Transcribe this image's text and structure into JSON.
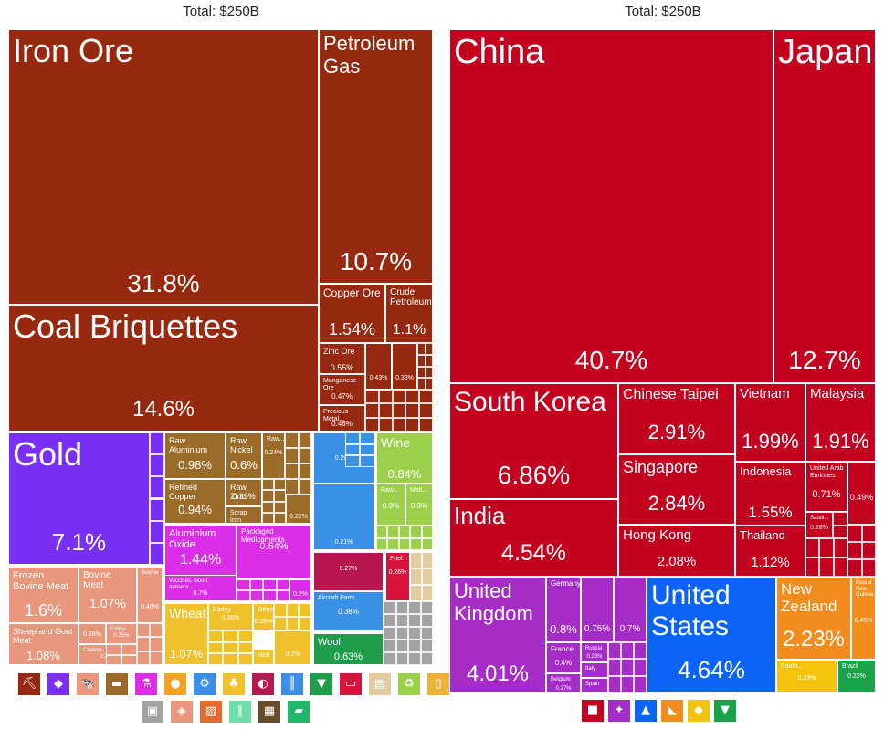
{
  "chart_data": [
    {
      "type": "treemap",
      "title": "Exports by product",
      "total_label": "Total: $250B",
      "tiles": [
        {
          "name": "Iron Ore",
          "share": "31.8%",
          "color": "#96290f"
        },
        {
          "name": "Coal Briquettes",
          "share": "14.6%",
          "color": "#96290f"
        },
        {
          "name": "Petroleum Gas",
          "share": "10.7%",
          "color": "#96290f"
        },
        {
          "name": "Copper Ore",
          "share": "1.54%",
          "color": "#96290f"
        },
        {
          "name": "Crude Petroleum",
          "share": "1.1%",
          "color": "#96290f"
        },
        {
          "name": "Zinc Ore",
          "share": "0.55%",
          "color": "#96290f"
        },
        {
          "name": "Manganese Ore",
          "share": "0.47%",
          "color": "#96290f"
        },
        {
          "name": "Precious Metal...",
          "share": "0.46%",
          "color": "#96290f"
        },
        {
          "name": "",
          "share": "0.43%",
          "color": "#96290f"
        },
        {
          "name": "",
          "share": "0.38%",
          "color": "#96290f"
        },
        {
          "name": "Gold",
          "share": "7.1%",
          "color": "#7a2ff7"
        },
        {
          "name": "Raw Aluminium",
          "share": "0.98%",
          "color": "#9b6b29"
        },
        {
          "name": "Raw Nickel",
          "share": "0.6%",
          "color": "#9b6b29"
        },
        {
          "name": "Raw...",
          "share": "0.24%",
          "color": "#9b6b29"
        },
        {
          "name": "Refined Copper",
          "share": "0.94%",
          "color": "#9b6b29"
        },
        {
          "name": "Raw Zinc",
          "share": "0.39%",
          "color": "#9b6b29"
        },
        {
          "name": "Scrap Iron",
          "share": "",
          "color": "#9b6b29"
        },
        {
          "name": "",
          "share": "0.22%",
          "color": "#9b6b29"
        },
        {
          "name": "Aluminium Oxide",
          "share": "1.44%",
          "color": "#dc2ee8"
        },
        {
          "name": "Packaged Medicaments",
          "share": "0.64%",
          "color": "#dc2ee8"
        },
        {
          "name": "Vaccines, blood, antisera...",
          "share": "0.7%",
          "color": "#dc2ee8"
        },
        {
          "name": "",
          "share": "0.2%",
          "color": "#dc2ee8"
        },
        {
          "name": "Frozen Bovine Meat",
          "share": "1.6%",
          "color": "#e8967c"
        },
        {
          "name": "Bovine Meat",
          "share": "1.07%",
          "color": "#e8967c"
        },
        {
          "name": "Bovine",
          "share": "0.46%",
          "color": "#e8967c"
        },
        {
          "name": "Sheep and Goat Meat",
          "share": "1.08%",
          "color": "#e8967c"
        },
        {
          "name": "",
          "share": "0.28%",
          "color": "#e8967c"
        },
        {
          "name": "Edible...",
          "share": "0.25%",
          "color": "#e8967c"
        },
        {
          "name": "Cheese",
          "share": "0.26%",
          "color": "#e8967c"
        },
        {
          "name": "Wheat",
          "share": "1.07%",
          "color": "#efc22c"
        },
        {
          "name": "Barley",
          "share": "0.36%",
          "color": "#efc22c"
        },
        {
          "name": "Other...",
          "share": "0.26%",
          "color": "#efc22c"
        },
        {
          "name": "Malt",
          "share": "",
          "color": "#efc22c"
        },
        {
          "name": "",
          "share": "0.2%",
          "color": "#efc22c"
        },
        {
          "name": "",
          "share": "0.29%",
          "color": "#3a8fe6"
        },
        {
          "name": "",
          "share": "0.21%",
          "color": "#3a8fe6"
        },
        {
          "name": "Wine",
          "share": "0.84%",
          "color": "#9dd04a"
        },
        {
          "name": "Raw...",
          "share": "0.3%",
          "color": "#9dd04a"
        },
        {
          "name": "Malt...",
          "share": "0.3%",
          "color": "#9dd04a"
        },
        {
          "name": "",
          "share": "0.27%",
          "color": "#b8174f"
        },
        {
          "name": "Fuel...",
          "share": "0.26%",
          "color": "#d9123b"
        },
        {
          "name": "Aircraft Parts",
          "share": "0.38%",
          "color": "#3a8fe6"
        },
        {
          "name": "Wool",
          "share": "0.63%",
          "color": "#1e9e4a"
        }
      ]
    },
    {
      "type": "treemap",
      "title": "Export destinations",
      "total_label": "Total: $250B",
      "tiles": [
        {
          "name": "China",
          "share": "40.7%",
          "color": "#c2021f"
        },
        {
          "name": "Japan",
          "share": "12.7%",
          "color": "#c2021f"
        },
        {
          "name": "South Korea",
          "share": "6.86%",
          "color": "#c2021f"
        },
        {
          "name": "Chinese Taipei",
          "share": "2.91%",
          "color": "#c2021f"
        },
        {
          "name": "Vietnam",
          "share": "1.99%",
          "color": "#c2021f"
        },
        {
          "name": "Malaysia",
          "share": "1.91%",
          "color": "#c2021f"
        },
        {
          "name": "Singapore",
          "share": "2.84%",
          "color": "#c2021f"
        },
        {
          "name": "Indonesia",
          "share": "1.55%",
          "color": "#c2021f"
        },
        {
          "name": "United Arab Emirates",
          "share": "0.71%",
          "color": "#c2021f"
        },
        {
          "name": "",
          "share": "0.49%",
          "color": "#c2021f"
        },
        {
          "name": "Saudi...",
          "share": "0.28%",
          "color": "#c2021f"
        },
        {
          "name": "India",
          "share": "4.54%",
          "color": "#c2021f"
        },
        {
          "name": "Hong Kong",
          "share": "2.08%",
          "color": "#c2021f"
        },
        {
          "name": "Thailand",
          "share": "1.12%",
          "color": "#c2021f"
        },
        {
          "name": "United Kingdom",
          "share": "4.01%",
          "color": "#a52cc6"
        },
        {
          "name": "Germany",
          "share": "0.8%",
          "color": "#a52cc6"
        },
        {
          "name": "",
          "share": "0.75%",
          "color": "#a52cc6"
        },
        {
          "name": "",
          "share": "0.7%",
          "color": "#a52cc6"
        },
        {
          "name": "France",
          "share": "0.4%",
          "color": "#a52cc6"
        },
        {
          "name": "Russia",
          "share": "0.23%",
          "color": "#a52cc6"
        },
        {
          "name": "Belgium",
          "share": "0.27%",
          "color": "#a52cc6"
        },
        {
          "name": "Italy",
          "share": "",
          "color": "#a52cc6"
        },
        {
          "name": "Spain",
          "share": "",
          "color": "#a52cc6"
        },
        {
          "name": "United States",
          "share": "4.64%",
          "color": "#0b64f5"
        },
        {
          "name": "New Zealand",
          "share": "2.23%",
          "color": "#f28c1c"
        },
        {
          "name": "Papua New Guinea",
          "share": "0.45%",
          "color": "#f28c1c"
        },
        {
          "name": "South...",
          "share": "0.29%",
          "color": "#f5c20c"
        },
        {
          "name": "Brazil",
          "share": "0.22%",
          "color": "#1aa34a"
        }
      ]
    }
  ],
  "legends": {
    "product_icons": [
      "mineral-products-icon",
      "precious-metals-icon",
      "animal-products-icon",
      "metals-icon",
      "chemical-products-icon",
      "vegetable-products-icon",
      "machines-icon",
      "foodstuffs-icon",
      "instruments-icon",
      "transportation-icon",
      "textiles-icon",
      "plastics-and-rubbers-icon",
      "paper-goods-icon",
      "miscellaneous-icon",
      "animal-and-vegetable-bi-products-icon",
      "stone-and-glass-icon",
      "animal-hides-icon",
      "wood-products-icon",
      "weapons-icon",
      "arts-and-antiques-icon",
      "footwear-and-headwear-icon"
    ],
    "product_colors": [
      "#96290f",
      "#7a2ff7",
      "#e8967c",
      "#9b6b29",
      "#dc2ee8",
      "#f2a21c",
      "#3a8fe6",
      "#efc22c",
      "#b8174f",
      "#3a8fe6",
      "#1e9e4a",
      "#d9123b",
      "#e2cb9e",
      "#9dd04a",
      "#ecb23a",
      "#a3a3a3",
      "#e8967c",
      "#e36c2c",
      "#6eddaa",
      "#6a4b2a",
      "#1fb86a"
    ],
    "continent_icons": [
      "asia-icon",
      "europe-icon",
      "north-america-icon",
      "oceania-icon",
      "africa-icon",
      "south-america-icon"
    ],
    "continent_colors": [
      "#c2021f",
      "#a52cc6",
      "#0b64f5",
      "#f28c1c",
      "#f5c20c",
      "#1aa34a"
    ]
  }
}
